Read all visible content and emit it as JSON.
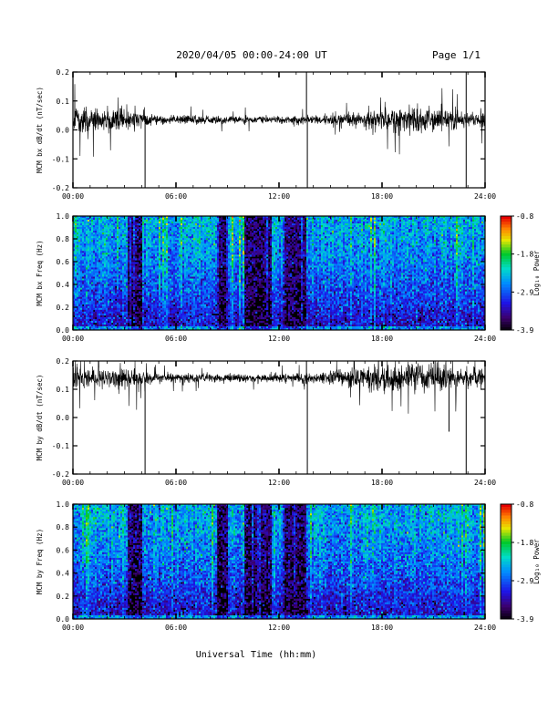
{
  "header": {
    "title": "2020/04/05  00:00-24:00 UT",
    "page": "Page 1/1"
  },
  "xlabel": "Universal Time (hh:mm)",
  "colorbar": {
    "label": "Log₁₀ Power",
    "ticks": [
      "-0.8",
      "-1.8",
      "-2.9",
      "-3.9"
    ],
    "range": [
      -3.9,
      -0.8
    ]
  },
  "chart_data": [
    {
      "type": "line",
      "ylabel": "MCM bx dB/dt (nT/sec)",
      "xlim": [
        0,
        24
      ],
      "ylim": [
        -0.2,
        0.2
      ],
      "x_ticks": [
        "00:00",
        "06:00",
        "12:00",
        "18:00",
        "24:00"
      ],
      "y_ticks": [
        "0.2",
        "0.1",
        "0.0",
        "-0.1",
        "-0.2"
      ],
      "series": [
        {
          "baseline": 0.035,
          "envelope_hours": [
            0,
            2,
            3,
            4,
            5,
            8,
            11,
            13,
            15,
            17,
            19,
            21,
            23,
            24
          ],
          "envelope_amplitude": [
            0.05,
            0.04,
            0.045,
            0.03,
            0.02,
            0.015,
            0.015,
            0.015,
            0.02,
            0.035,
            0.05,
            0.05,
            0.035,
            0.035
          ],
          "spikes": [
            {
              "x": 4.2,
              "y": -0.2
            },
            {
              "x": 13.6,
              "y": 0.2
            },
            {
              "x": 13.65,
              "y": -0.2
            },
            {
              "x": 22.9,
              "y": -0.2
            },
            {
              "x": 22.9,
              "y": 0.2
            }
          ]
        }
      ]
    },
    {
      "type": "heatmap",
      "ylabel": "MCM bx Freq (Hz)",
      "xlim": [
        0,
        24
      ],
      "ylim": [
        0,
        1.0
      ],
      "x_ticks": [
        "00:00",
        "06:00",
        "12:00",
        "18:00",
        "24:00"
      ],
      "y_ticks": [
        "1.0",
        "0.8",
        "0.6",
        "0.4",
        "0.2",
        "0.0"
      ],
      "quiet_intervals_hours": [
        [
          3.2,
          4.0
        ],
        [
          8.4,
          9.0
        ],
        [
          10.0,
          11.6
        ],
        [
          12.2,
          13.6
        ]
      ]
    },
    {
      "type": "line",
      "ylabel": "MCM by dB/dt (nT/sec)",
      "xlim": [
        0,
        24
      ],
      "ylim": [
        -0.2,
        0.2
      ],
      "x_ticks": [
        "00:00",
        "06:00",
        "12:00",
        "18:00",
        "24:00"
      ],
      "y_ticks": [
        "0.2",
        "0.1",
        "0.0",
        "-0.1",
        "-0.2"
      ],
      "series": [
        {
          "baseline": 0.14,
          "envelope_hours": [
            0,
            2,
            3,
            4,
            5,
            8,
            11,
            13,
            15,
            17,
            19,
            21,
            23,
            24
          ],
          "envelope_amplitude": [
            0.04,
            0.035,
            0.04,
            0.03,
            0.02,
            0.015,
            0.015,
            0.02,
            0.025,
            0.045,
            0.06,
            0.05,
            0.04,
            0.035
          ],
          "spikes": [
            {
              "x": 4.2,
              "y": -0.2
            },
            {
              "x": 13.6,
              "y": 0.2
            },
            {
              "x": 13.65,
              "y": -0.2
            },
            {
              "x": 22.9,
              "y": -0.2
            },
            {
              "x": 21.9,
              "y": -0.05
            }
          ]
        }
      ]
    },
    {
      "type": "heatmap",
      "ylabel": "MCM by Freq (Hz)",
      "xlim": [
        0,
        24
      ],
      "ylim": [
        0,
        1.0
      ],
      "x_ticks": [
        "00:00",
        "06:00",
        "12:00",
        "18:00",
        "24:00"
      ],
      "y_ticks": [
        "1.0",
        "0.8",
        "0.6",
        "0.4",
        "0.2",
        "0.0"
      ],
      "quiet_intervals_hours": [
        [
          3.2,
          4.0
        ],
        [
          8.4,
          9.0
        ],
        [
          10.0,
          11.6
        ],
        [
          12.2,
          13.6
        ]
      ]
    }
  ]
}
